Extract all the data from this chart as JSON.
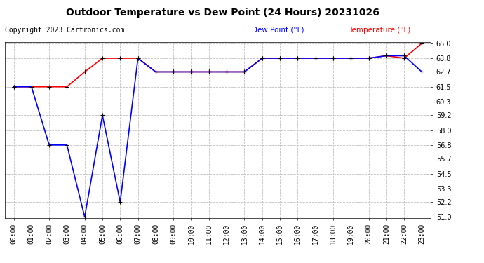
{
  "title": "Outdoor Temperature vs Dew Point (24 Hours) 20231026",
  "copyright": "Copyright 2023 Cartronics.com",
  "legend_dew": "Dew Point (°F)",
  "legend_temp": "Temperature (°F)",
  "hours": [
    "00:00",
    "01:00",
    "02:00",
    "03:00",
    "04:00",
    "05:00",
    "06:00",
    "07:00",
    "08:00",
    "09:00",
    "10:00",
    "11:00",
    "12:00",
    "13:00",
    "14:00",
    "15:00",
    "16:00",
    "17:00",
    "18:00",
    "19:00",
    "20:00",
    "21:00",
    "22:00",
    "23:00"
  ],
  "dew_point": [
    61.5,
    61.5,
    61.5,
    61.5,
    62.7,
    63.8,
    63.8,
    63.8,
    62.7,
    62.7,
    62.7,
    62.7,
    62.7,
    62.7,
    63.8,
    63.8,
    63.8,
    63.8,
    63.8,
    63.8,
    63.8,
    64.0,
    63.8,
    65.0
  ],
  "temperature": [
    61.5,
    61.5,
    56.8,
    56.8,
    51.0,
    59.2,
    52.2,
    63.8,
    62.7,
    62.7,
    62.7,
    62.7,
    62.7,
    62.7,
    63.8,
    63.8,
    63.8,
    63.8,
    63.8,
    63.8,
    63.8,
    64.0,
    64.0,
    62.7
  ],
  "ylim_min": 51.0,
  "ylim_max": 65.0,
  "yticks": [
    51.0,
    52.2,
    53.3,
    54.5,
    55.7,
    56.8,
    58.0,
    59.2,
    60.3,
    61.5,
    62.7,
    63.8,
    65.0
  ],
  "dew_line_color": "red",
  "temp_line_color": "blue",
  "legend_dew_color": "blue",
  "legend_temp_color": "red",
  "bg_color": "#ffffff",
  "grid_color": "#c0c0c0",
  "title_fontsize": 10,
  "tick_fontsize": 7,
  "copyright_fontsize": 7,
  "legend_fontsize": 7.5
}
